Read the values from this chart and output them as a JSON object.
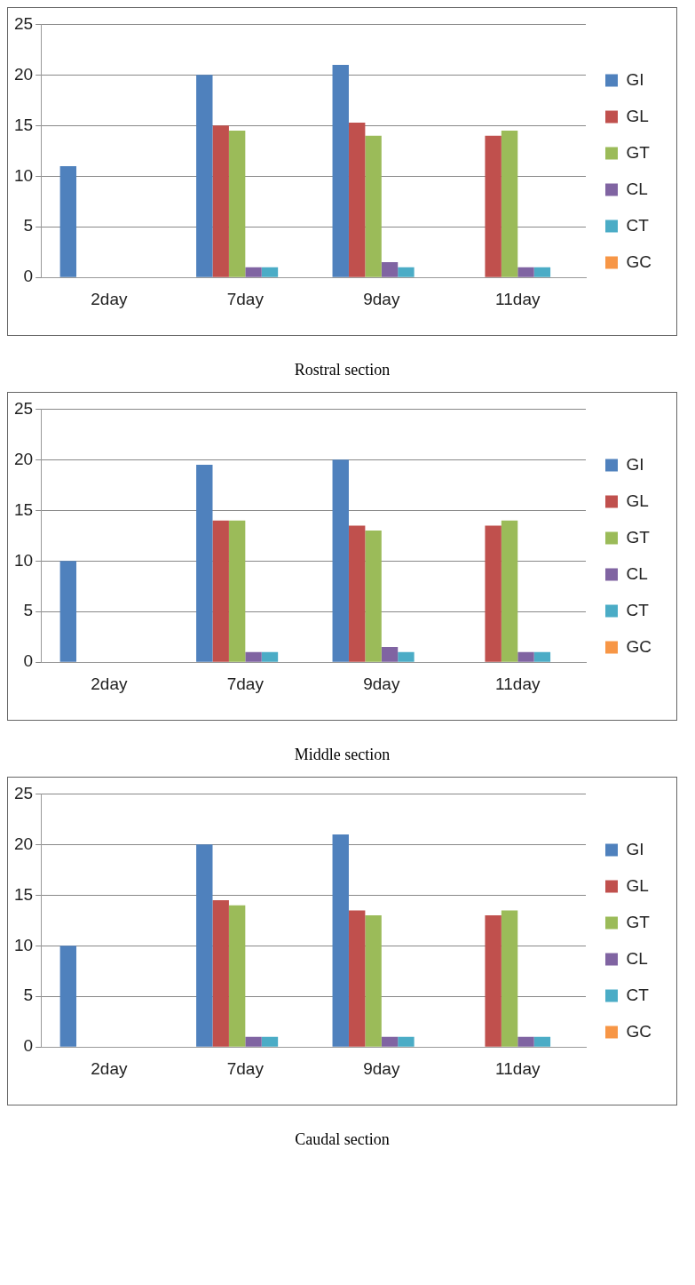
{
  "chart_data": [
    {
      "type": "bar",
      "title": "Rostral section",
      "categories": [
        "2day",
        "7day",
        "9day",
        "11day"
      ],
      "ylim": [
        0,
        25
      ],
      "yticks": [
        0,
        5,
        10,
        15,
        20,
        25
      ],
      "grid": "y",
      "legend": "right",
      "series": [
        {
          "name": "GI",
          "color": "#4f81bd",
          "values": [
            11,
            20,
            21,
            0
          ]
        },
        {
          "name": "GL",
          "color": "#c0504d",
          "values": [
            0,
            15,
            15.3,
            14
          ]
        },
        {
          "name": "GT",
          "color": "#9bbb59",
          "values": [
            0,
            14.5,
            14,
            14.5
          ]
        },
        {
          "name": "CL",
          "color": "#8064a2",
          "values": [
            0,
            1,
            1.5,
            1
          ]
        },
        {
          "name": "CT",
          "color": "#4bacc6",
          "values": [
            0,
            1,
            1,
            1
          ]
        },
        {
          "name": "GC",
          "color": "#f79646",
          "values": [
            0,
            0,
            0,
            0
          ]
        }
      ]
    },
    {
      "type": "bar",
      "title": "Middle section",
      "categories": [
        "2day",
        "7day",
        "9day",
        "11day"
      ],
      "ylim": [
        0,
        25
      ],
      "yticks": [
        0,
        5,
        10,
        15,
        20,
        25
      ],
      "grid": "y",
      "legend": "right",
      "series": [
        {
          "name": "GI",
          "color": "#4f81bd",
          "values": [
            10,
            19.5,
            20,
            0
          ]
        },
        {
          "name": "GL",
          "color": "#c0504d",
          "values": [
            0,
            14,
            13.5,
            13.5
          ]
        },
        {
          "name": "GT",
          "color": "#9bbb59",
          "values": [
            0,
            14,
            13,
            14
          ]
        },
        {
          "name": "CL",
          "color": "#8064a2",
          "values": [
            0,
            1,
            1.5,
            1
          ]
        },
        {
          "name": "CT",
          "color": "#4bacc6",
          "values": [
            0,
            1,
            1,
            1
          ]
        },
        {
          "name": "GC",
          "color": "#f79646",
          "values": [
            0,
            0,
            0,
            0
          ]
        }
      ]
    },
    {
      "type": "bar",
      "title": "Caudal section",
      "categories": [
        "2day",
        "7day",
        "9day",
        "11day"
      ],
      "ylim": [
        0,
        25
      ],
      "yticks": [
        0,
        5,
        10,
        15,
        20,
        25
      ],
      "grid": "y",
      "legend": "right",
      "series": [
        {
          "name": "GI",
          "color": "#4f81bd",
          "values": [
            10,
            20,
            21,
            0
          ]
        },
        {
          "name": "GL",
          "color": "#c0504d",
          "values": [
            0,
            14.5,
            13.5,
            13
          ]
        },
        {
          "name": "GT",
          "color": "#9bbb59",
          "values": [
            0,
            14,
            13,
            13.5
          ]
        },
        {
          "name": "CL",
          "color": "#8064a2",
          "values": [
            0,
            1,
            1,
            1
          ]
        },
        {
          "name": "CT",
          "color": "#4bacc6",
          "values": [
            0,
            1,
            1,
            1
          ]
        },
        {
          "name": "GC",
          "color": "#f79646",
          "values": [
            0,
            0,
            0,
            0
          ]
        }
      ]
    }
  ]
}
